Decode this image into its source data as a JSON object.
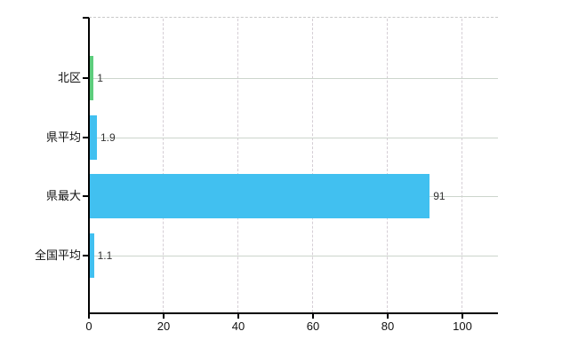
{
  "chart_data": {
    "type": "bar",
    "orientation": "horizontal",
    "title": "",
    "xlabel": "",
    "ylabel": "",
    "categories": [
      "北区",
      "県平均",
      "県最大",
      "全国平均"
    ],
    "values": [
      1,
      1.9,
      91,
      1.1
    ],
    "value_labels": [
      "1",
      "1.9",
      "91",
      "1.1"
    ],
    "bar_colors": [
      "#5ecd7d",
      "#41c0f0",
      "#41c0f0",
      "#41c0f0"
    ],
    "x_ticks": [
      0,
      20,
      40,
      60,
      80,
      100
    ],
    "x_tick_labels": [
      "0",
      "20",
      "40",
      "60",
      "80",
      "100"
    ],
    "xlim": [
      0,
      109.5
    ],
    "grid": {
      "vertical_style": "dashed",
      "horizontal_style": "solid",
      "vertical_color": "#d5ced5",
      "horizontal_color": "#ccd5cc",
      "top_border_style": "dashed",
      "top_border_color": "#c9c9c9"
    },
    "legend_position": "none"
  },
  "colors": {
    "background": "#ffffff",
    "axis": "#000000",
    "category_text": "#111111",
    "value_text": "#333333",
    "bar_cyan": "#41c0f0",
    "bar_green": "#5ecd7d"
  }
}
